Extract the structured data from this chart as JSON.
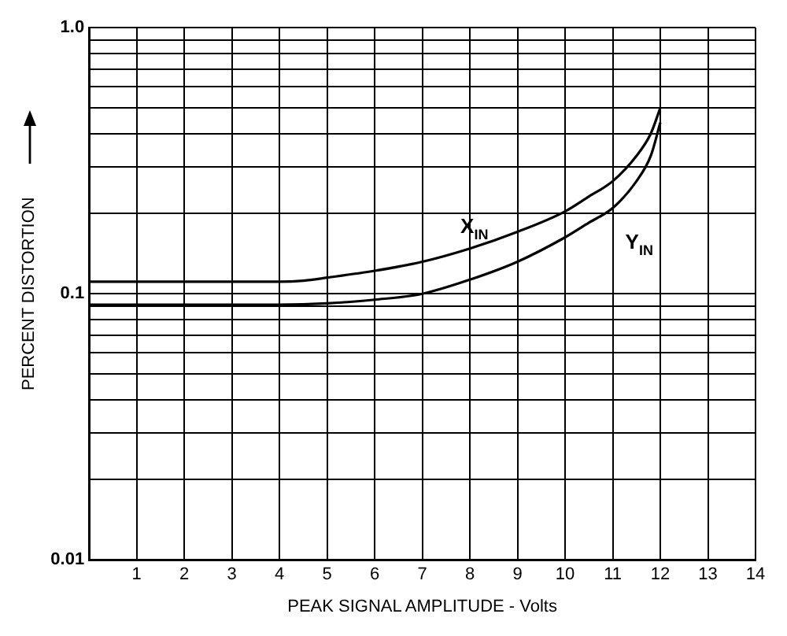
{
  "chart_data": {
    "type": "line",
    "xlabel": "PEAK SIGNAL AMPLITUDE - Volts",
    "ylabel": "PERCENT DISTORTION",
    "log": "y",
    "grid": true,
    "legend": false,
    "marker": "none",
    "line_style": "solid",
    "xlim": [
      0,
      14
    ],
    "xticks": [
      1,
      2,
      3,
      4,
      5,
      6,
      7,
      8,
      9,
      10,
      11,
      12,
      13,
      14
    ],
    "ylim": [
      0.01,
      1.0
    ],
    "yticks": [
      {
        "value": 0.01,
        "label": "0.01"
      },
      {
        "value": 0.02,
        "label": null
      },
      {
        "value": 0.03,
        "label": null
      },
      {
        "value": 0.04,
        "label": null
      },
      {
        "value": 0.05,
        "label": null
      },
      {
        "value": 0.06,
        "label": null
      },
      {
        "value": 0.07,
        "label": null
      },
      {
        "value": 0.08,
        "label": null
      },
      {
        "value": 0.09,
        "label": null
      },
      {
        "value": 0.1,
        "label": "0.1"
      },
      {
        "value": 0.2,
        "label": null
      },
      {
        "value": 0.3,
        "label": null
      },
      {
        "value": 0.4,
        "label": null
      },
      {
        "value": 0.5,
        "label": null
      },
      {
        "value": 0.6,
        "label": null
      },
      {
        "value": 0.7,
        "label": null
      },
      {
        "value": 0.8,
        "label": null
      },
      {
        "value": 0.9,
        "label": null
      },
      {
        "value": 1.0,
        "label": "1.0"
      }
    ],
    "series": [
      {
        "name": "X$_{IN}$",
        "color": "#000000",
        "x": [
          0,
          1,
          2,
          3,
          4,
          4.5,
          5,
          6,
          7,
          8,
          9,
          10,
          10.5,
          11,
          11.5,
          11.8,
          12
        ],
        "values": [
          0.111,
          0.111,
          0.111,
          0.111,
          0.111,
          0.112,
          0.115,
          0.122,
          0.132,
          0.148,
          0.171,
          0.204,
          0.232,
          0.265,
          0.33,
          0.4,
          0.5
        ]
      },
      {
        "name": "Y$_{IN}$",
        "color": "#000000",
        "x": [
          0,
          1,
          2,
          3,
          4,
          5,
          6,
          7,
          8,
          9,
          10,
          10.5,
          11,
          11.5,
          11.8,
          12
        ],
        "values": [
          0.091,
          0.091,
          0.091,
          0.091,
          0.091,
          0.092,
          0.095,
          0.1,
          0.113,
          0.132,
          0.163,
          0.185,
          0.21,
          0.265,
          0.33,
          0.44
        ]
      }
    ]
  }
}
